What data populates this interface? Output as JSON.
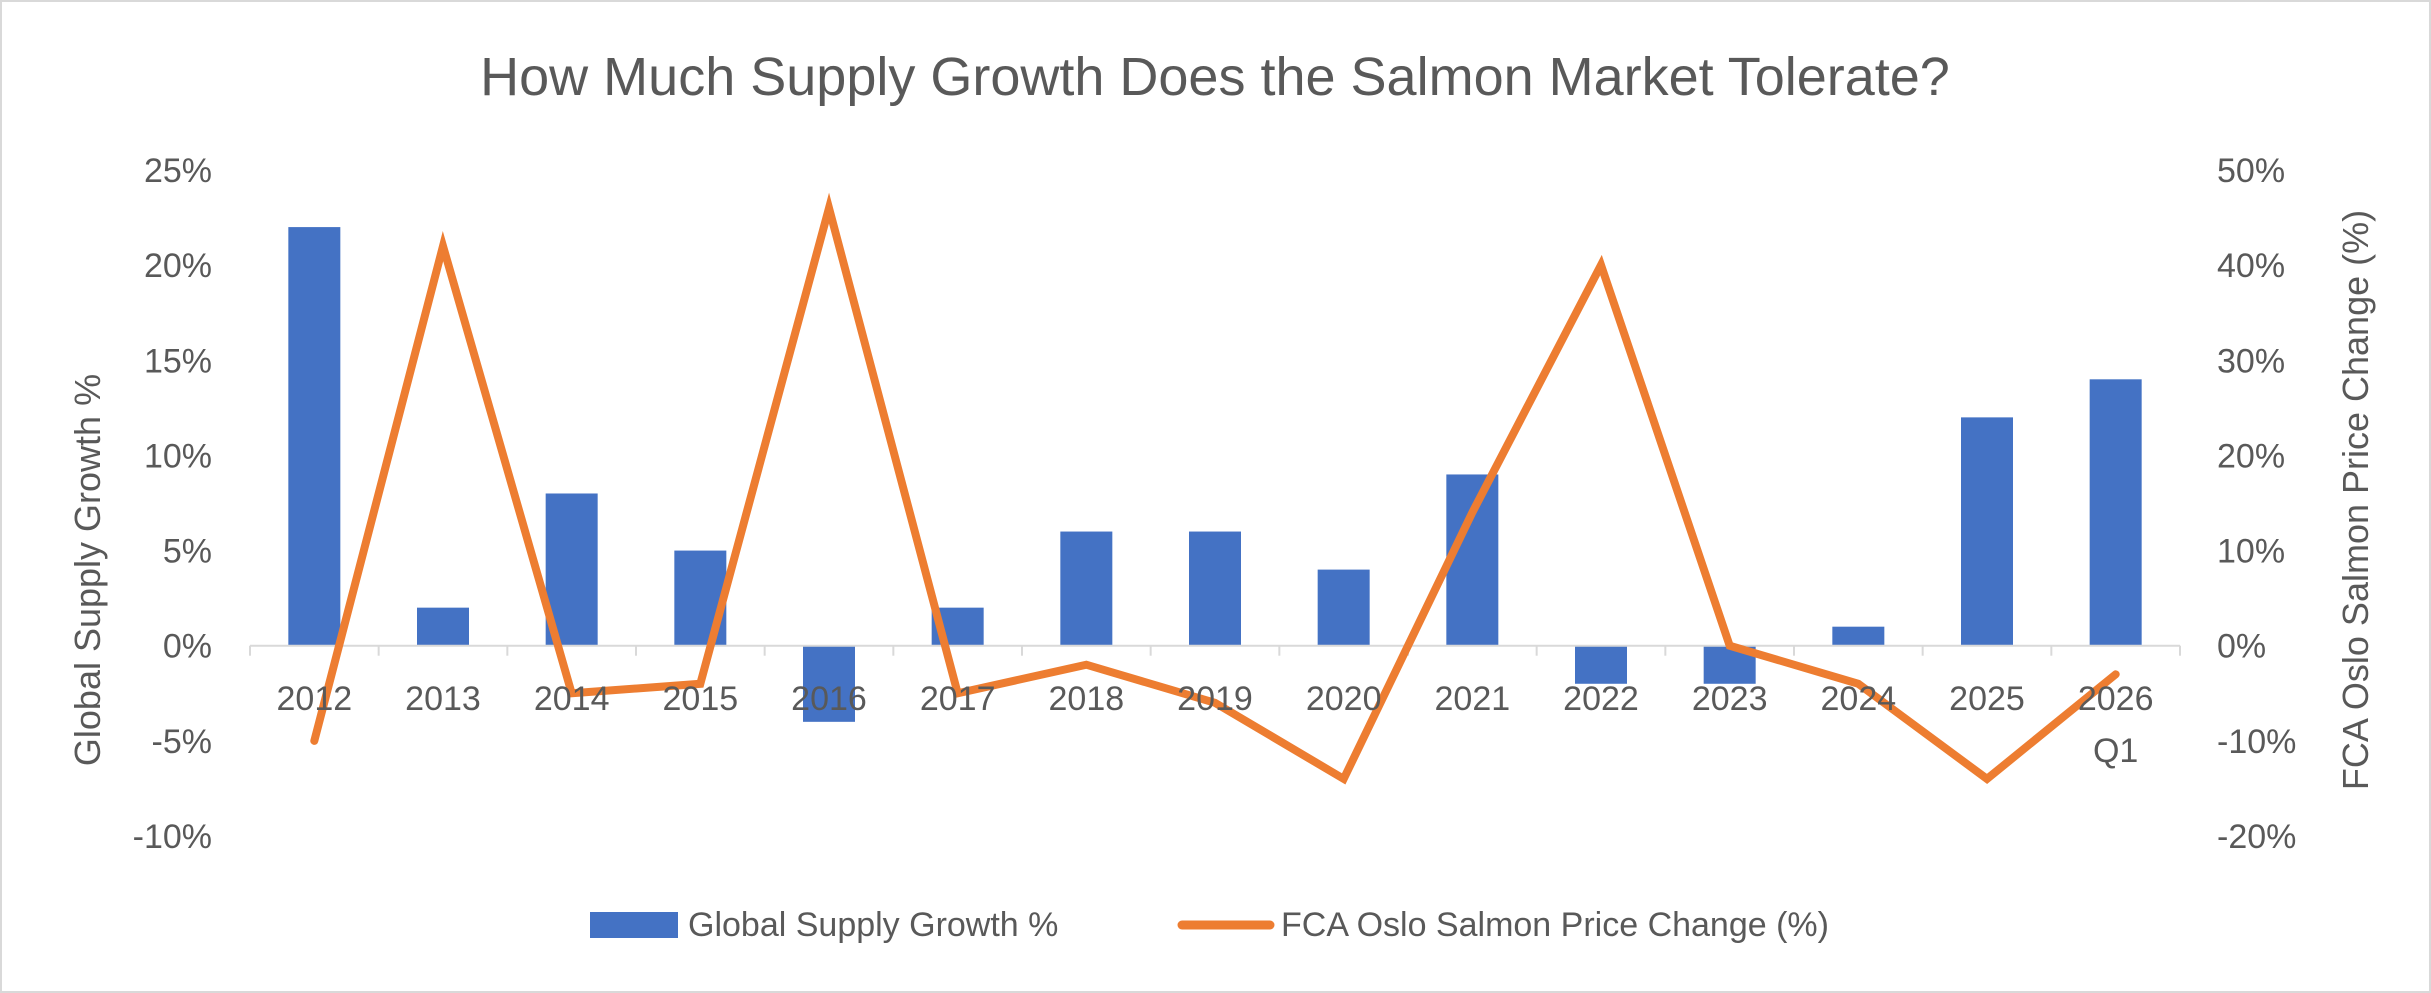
{
  "chart_data": {
    "type": "bar",
    "title": "How Much Supply Growth Does the Salmon Market Tolerate?",
    "categories": [
      [
        "2012"
      ],
      [
        "2013"
      ],
      [
        "2014"
      ],
      [
        "2015"
      ],
      [
        "2016"
      ],
      [
        "2017"
      ],
      [
        "2018"
      ],
      [
        "2019"
      ],
      [
        "2020"
      ],
      [
        "2021"
      ],
      [
        "2022"
      ],
      [
        "2023"
      ],
      [
        "2024"
      ],
      [
        "2025"
      ],
      [
        "2026",
        "Q1"
      ]
    ],
    "series": [
      {
        "name": "Global Supply Growth %",
        "type": "bar",
        "axis": "left",
        "color": "#4472c4",
        "values": [
          22,
          2,
          8,
          5,
          -4,
          2,
          6,
          6,
          4,
          9,
          -2,
          -2,
          1,
          12,
          14
        ]
      },
      {
        "name": "FCA Oslo Salmon Price Change (%)",
        "type": "line",
        "axis": "right",
        "color": "#ed7d31",
        "values": [
          -10,
          42,
          -5,
          -4,
          46,
          -5,
          -2,
          -6,
          -14,
          14,
          40,
          0,
          -4,
          -14,
          -3
        ]
      }
    ],
    "y_left": {
      "label": "Global Supply Growth %",
      "range": [
        -10,
        25
      ],
      "ticks": [
        "-10%",
        "-5%",
        "0%",
        "5%",
        "10%",
        "15%",
        "20%",
        "25%"
      ]
    },
    "y_right": {
      "label": "FCA Oslo Salmon Price Change (%)",
      "range": [
        -20,
        50
      ],
      "ticks": [
        "-20%",
        "-10%",
        "0%",
        "10%",
        "20%",
        "30%",
        "40%",
        "50%"
      ]
    },
    "grid": false,
    "legend": "bottom"
  }
}
